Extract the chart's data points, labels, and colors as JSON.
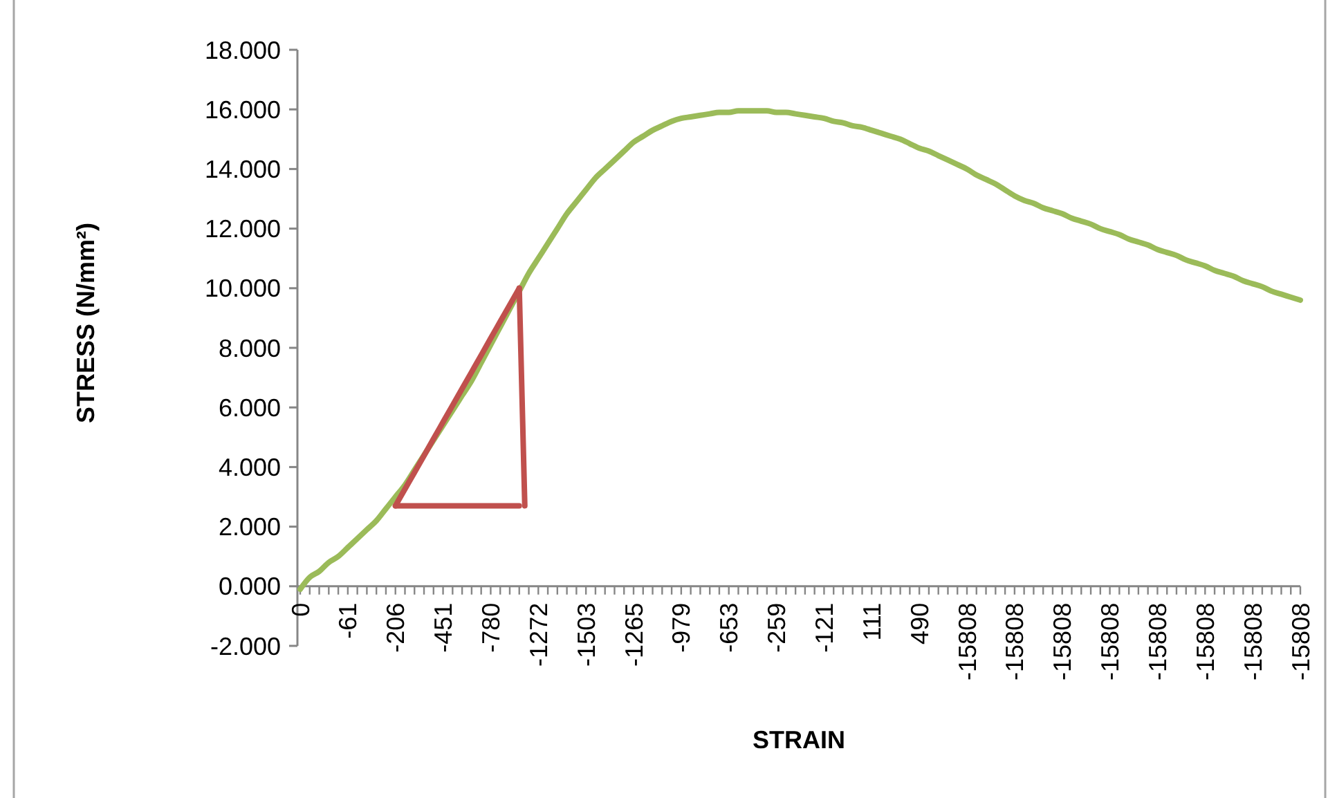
{
  "chart_data": {
    "type": "line",
    "xlabel": "STRAIN",
    "ylabel": "STRESS (N/mm²)",
    "categories": [
      "0",
      null,
      null,
      null,
      null,
      "-61",
      null,
      null,
      null,
      null,
      "-206",
      null,
      null,
      null,
      null,
      "-451",
      null,
      null,
      null,
      null,
      "-780",
      null,
      null,
      null,
      null,
      "-1272",
      null,
      null,
      null,
      null,
      "-1503",
      null,
      null,
      null,
      null,
      "-1265",
      null,
      null,
      null,
      null,
      "-979",
      null,
      null,
      null,
      null,
      "-653",
      null,
      null,
      null,
      null,
      "-259",
      null,
      null,
      null,
      null,
      "-121",
      null,
      null,
      null,
      null,
      "111",
      null,
      null,
      null,
      null,
      "490",
      null,
      null,
      null,
      null,
      "-15808",
      null,
      null,
      null,
      null,
      "-15808",
      null,
      null,
      null,
      null,
      "-15808",
      null,
      null,
      null,
      null,
      "-15808",
      null,
      null,
      null,
      null,
      "-15808",
      null,
      null,
      null,
      null,
      "-15808",
      null,
      null,
      null,
      null,
      "-15808",
      null,
      null,
      null,
      null,
      "-15808"
    ],
    "series": [
      {
        "color": "#9bbb59",
        "values": [
          -0.1,
          0.3,
          0.5,
          0.8,
          1.0,
          1.3,
          1.6,
          1.9,
          2.2,
          2.6,
          3.0,
          3.4,
          3.9,
          4.4,
          4.9,
          5.4,
          5.9,
          6.4,
          6.9,
          7.5,
          8.1,
          8.7,
          9.3,
          9.9,
          10.5,
          11.0,
          11.5,
          12.0,
          12.5,
          12.9,
          13.3,
          13.7,
          14.0,
          14.3,
          14.6,
          14.9,
          15.1,
          15.3,
          15.45,
          15.6,
          15.7,
          15.75,
          15.8,
          15.85,
          15.9,
          15.9,
          15.95,
          15.95,
          15.95,
          15.95,
          15.9,
          15.9,
          15.85,
          15.8,
          15.75,
          15.7,
          15.6,
          15.55,
          15.45,
          15.4,
          15.3,
          15.2,
          15.1,
          15.0,
          14.85,
          14.7,
          14.6,
          14.45,
          14.3,
          14.15,
          14.0,
          13.8,
          13.65,
          13.5,
          13.3,
          13.1,
          12.95,
          12.85,
          12.7,
          12.6,
          12.5,
          12.35,
          12.25,
          12.15,
          12.0,
          11.9,
          11.8,
          11.65,
          11.55,
          11.45,
          11.3,
          11.2,
          11.1,
          10.95,
          10.85,
          10.75,
          10.6,
          10.5,
          10.4,
          10.25,
          10.15,
          10.05,
          9.9,
          9.8,
          9.7,
          9.6
        ]
      },
      {
        "type": "line",
        "color": "#c0504d",
        "values": [
          null,
          null,
          null,
          null,
          null,
          null,
          null,
          null,
          null,
          null,
          2.7,
          3.26,
          3.82,
          4.38,
          4.95,
          5.51,
          6.07,
          6.63,
          7.19,
          7.75,
          8.32,
          8.88,
          9.44,
          10.0,
          null,
          null,
          null,
          null,
          null,
          null,
          null,
          null,
          null,
          null,
          null,
          null,
          null,
          null,
          null,
          null,
          null,
          null,
          null,
          null,
          null,
          null,
          null,
          null,
          null,
          null,
          null,
          null,
          null,
          null,
          null,
          null,
          null,
          null,
          null,
          null,
          null,
          null,
          null,
          null,
          null,
          null,
          null,
          null,
          null,
          null,
          null,
          null,
          null,
          null,
          null,
          null,
          null,
          null,
          null,
          null,
          null,
          null,
          null,
          null,
          null,
          null,
          null,
          null,
          null,
          null,
          null,
          null,
          null,
          null,
          null,
          null,
          null,
          null,
          null,
          null,
          null,
          null,
          null,
          null,
          null,
          null
        ]
      },
      {
        "type": "line",
        "color": "#c0504d",
        "values": [
          null,
          null,
          null,
          null,
          null,
          null,
          null,
          null,
          null,
          null,
          2.7,
          2.7,
          2.7,
          2.7,
          2.7,
          2.7,
          2.7,
          2.7,
          2.7,
          2.7,
          2.7,
          2.7,
          2.7,
          2.7,
          null,
          null,
          null,
          null,
          null,
          null,
          null,
          null,
          null,
          null,
          null,
          null,
          null,
          null,
          null,
          null,
          null,
          null,
          null,
          null,
          null,
          null,
          null,
          null,
          null,
          null,
          null,
          null,
          null,
          null,
          null,
          null,
          null,
          null,
          null,
          null,
          null,
          null,
          null,
          null,
          null,
          null,
          null,
          null,
          null,
          null,
          null,
          null,
          null,
          null,
          null,
          null,
          null,
          null,
          null,
          null,
          null,
          null,
          null,
          null,
          null,
          null,
          null,
          null,
          null,
          null,
          null,
          null,
          null,
          null,
          null,
          null,
          null,
          null,
          null,
          null,
          null,
          null,
          null,
          null,
          null,
          null
        ]
      }
    ],
    "ylim": [
      -2,
      18
    ],
    "yticks": [
      {
        "value": -2,
        "label": "-2.000"
      },
      {
        "value": 0,
        "label": "0.000"
      },
      {
        "value": 2,
        "label": "2.000"
      },
      {
        "value": 4,
        "label": "4.000"
      },
      {
        "value": 6,
        "label": "6.000"
      },
      {
        "value": 8,
        "label": "8.000"
      },
      {
        "value": 10,
        "label": "10.000"
      },
      {
        "value": 12,
        "label": "12.000"
      },
      {
        "value": 14,
        "label": "14.000"
      },
      {
        "value": 16,
        "label": "16.000"
      },
      {
        "value": 18,
        "label": "18.000"
      }
    ],
    "marker": "none",
    "legend": false,
    "grid": false
  }
}
